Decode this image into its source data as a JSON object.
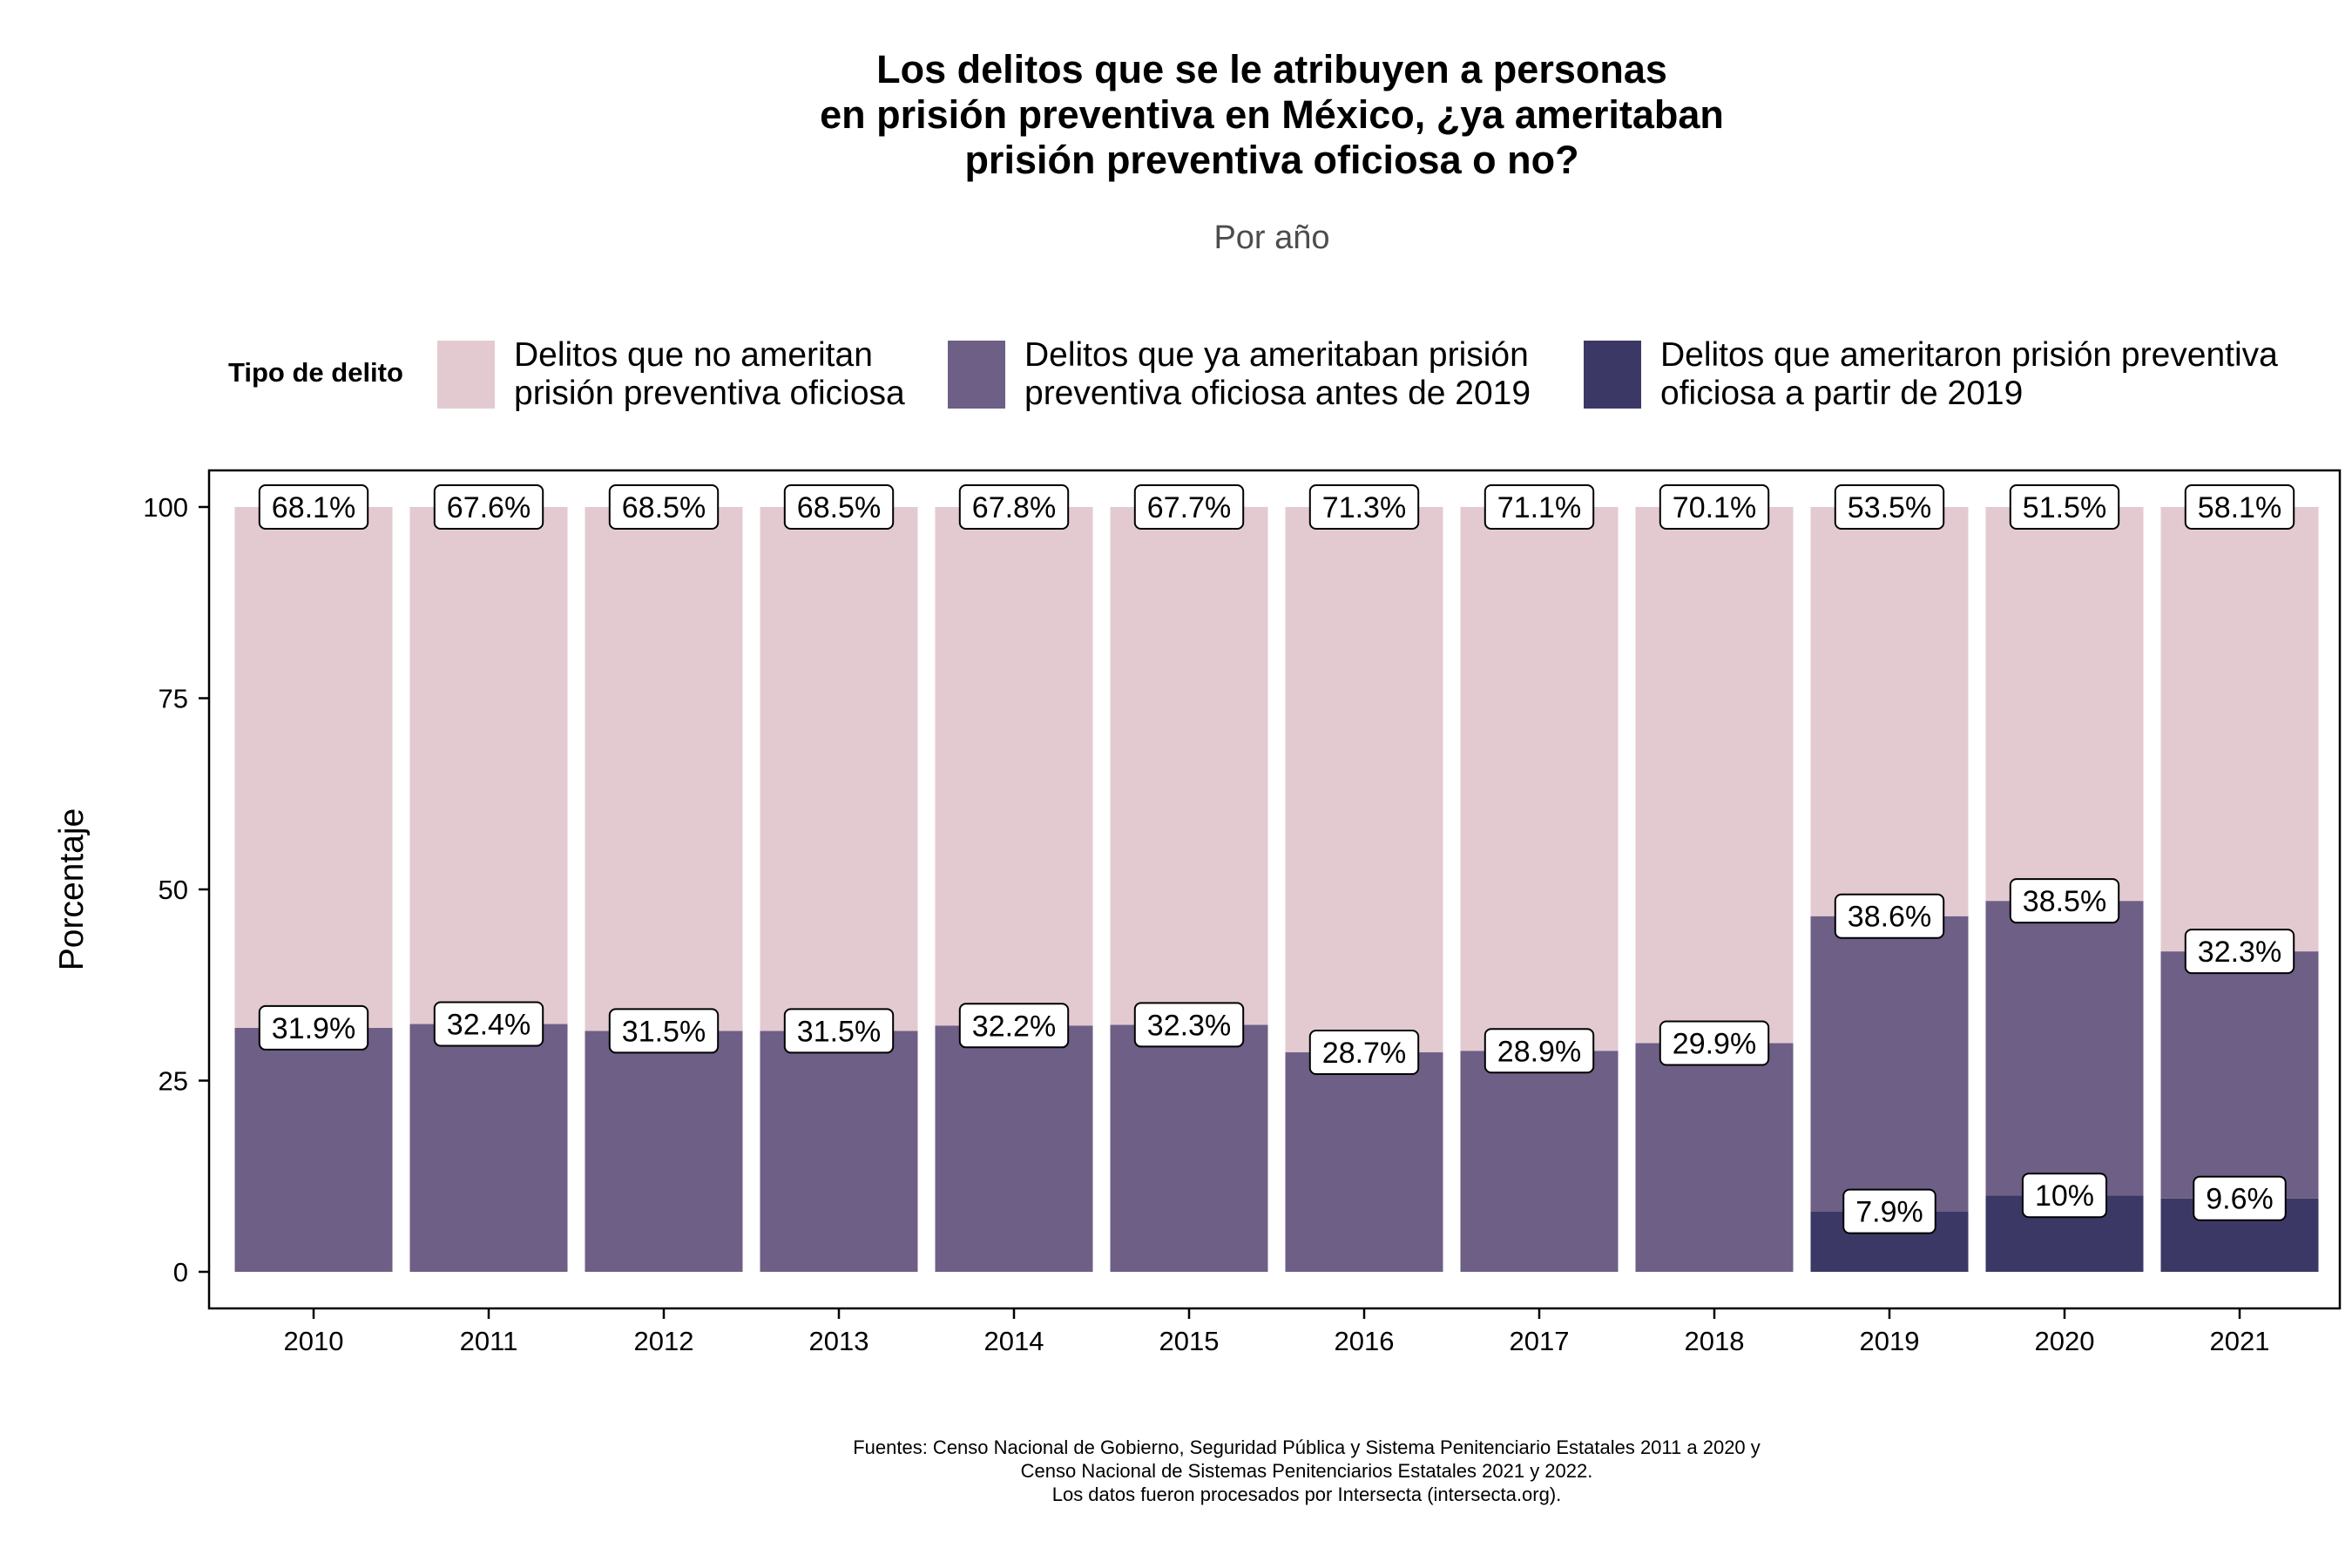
{
  "chart_data": {
    "type": "bar",
    "stacked": true,
    "title_lines": [
      "Los delitos que se le atribuyen a personas",
      "en prisión preventiva en México, ¿ya ameritaban",
      "prisión preventiva oficiosa o no?"
    ],
    "subtitle": "Por año",
    "ylabel": "Porcentaje",
    "xlabel": "",
    "ylim": [
      0,
      100
    ],
    "y_ticks": [
      "0",
      "25",
      "50",
      "75",
      "100"
    ],
    "grid": false,
    "legend_position": "top",
    "legend_title": "Tipo de delito",
    "categories": [
      "2010",
      "2011",
      "2012",
      "2013",
      "2014",
      "2015",
      "2016",
      "2017",
      "2018",
      "2019",
      "2020",
      "2021"
    ],
    "series": [
      {
        "name_lines": [
          "Delitos que no ameritan",
          "prisión preventiva oficiosa"
        ],
        "color": "#e3cad1",
        "values": [
          68.1,
          67.6,
          68.5,
          68.5,
          67.8,
          67.7,
          71.3,
          71.1,
          70.1,
          53.5,
          51.5,
          58.1
        ],
        "labels": [
          "68.1%",
          "67.6%",
          "68.5%",
          "68.5%",
          "67.8%",
          "67.7%",
          "71.3%",
          "71.1%",
          "70.1%",
          "53.5%",
          "51.5%",
          "58.1%"
        ]
      },
      {
        "name_lines": [
          "Delitos que ya ameritaban prisión",
          "preventiva oficiosa antes de 2019"
        ],
        "color": "#6e5f86",
        "values": [
          31.9,
          32.4,
          31.5,
          31.5,
          32.2,
          32.3,
          28.7,
          28.9,
          29.9,
          38.6,
          38.5,
          32.3
        ],
        "labels": [
          "31.9%",
          "32.4%",
          "31.5%",
          "31.5%",
          "32.2%",
          "32.3%",
          "28.7%",
          "28.9%",
          "29.9%",
          "38.6%",
          "38.5%",
          "32.3%"
        ]
      },
      {
        "name_lines": [
          "Delitos que ameritaron prisión preventiva",
          "oficiosa a partir de 2019"
        ],
        "color": "#3c3866",
        "values": [
          0,
          0,
          0,
          0,
          0,
          0,
          0,
          0,
          0,
          7.9,
          10,
          9.6
        ],
        "labels": [
          "",
          "",
          "",
          "",
          "",
          "",
          "",
          "",
          "",
          "7.9%",
          "10%",
          "9.6%"
        ]
      }
    ]
  },
  "caption_lines": [
    "Fuentes: Censo Nacional de Gobierno, Seguridad Pública y Sistema Penitenciario Estatales 2011 a 2020 y",
    "Censo Nacional de Sistemas Penitenciarios Estatales 2021 y 2022.",
    "Los datos fueron procesados por Intersecta (intersecta.org)."
  ]
}
